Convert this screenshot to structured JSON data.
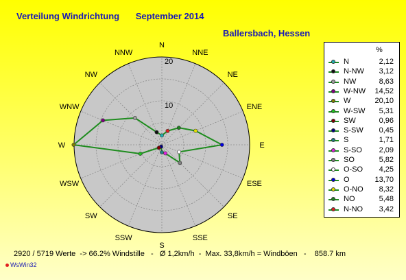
{
  "header": {
    "title": "Verteilung Windrichtung",
    "date": "September 2014",
    "location": "Ballersbach, Hessen"
  },
  "legend": {
    "unit_label": "%"
  },
  "footer": {
    "text": "2920 / 5719 Werte  -> 66.2% Windstille   -   Ø 1,2km/h  -  Max. 33,8km/h = Windböen   -    858.7 km",
    "copyright": "WsWin32"
  },
  "colors": {
    "rose_line": "#1e8c1e",
    "rose_fill": "#c8c8c8",
    "grid": "#8c8c8c",
    "title": "#1a1ab4"
  },
  "chart_data": {
    "type": "radar",
    "title": "Verteilung Windrichtung",
    "directions": [
      "N",
      "NNE",
      "NE",
      "ENE",
      "E",
      "ESE",
      "SE",
      "SSE",
      "S",
      "SSW",
      "SW",
      "WSW",
      "W",
      "WNW",
      "NW",
      "NNW"
    ],
    "rings": [
      10,
      20
    ],
    "rmax": 20,
    "series": [
      {
        "values": [
          2.12,
          3.42,
          5.48,
          8.32,
          13.7,
          4.25,
          5.82,
          2.09,
          1.71,
          0.45,
          0.96,
          5.31,
          20.1,
          14.52,
          8.63,
          3.12
        ]
      }
    ],
    "legend_entries": [
      {
        "label": "N",
        "value": "2,12",
        "color": "#20b0b0"
      },
      {
        "label": "N-NW",
        "value": "3,12",
        "color": "#101010"
      },
      {
        "label": "NW",
        "value": "8,63",
        "color": "#a0a0a0"
      },
      {
        "label": "W-NW",
        "value": "14,52",
        "color": "#800080"
      },
      {
        "label": "W",
        "value": "20,10",
        "color": "#808000"
      },
      {
        "label": "W-SW",
        "value": "5,31",
        "color": "#20c020"
      },
      {
        "label": "SW",
        "value": "0,96",
        "color": "#800000"
      },
      {
        "label": "S-SW",
        "value": "0,45",
        "color": "#000080"
      },
      {
        "label": "S",
        "value": "1,71",
        "color": "#208080"
      },
      {
        "label": "S-SO",
        "value": "2,09",
        "color": "#e020e0"
      },
      {
        "label": "SO",
        "value": "5,82",
        "color": "#808080"
      },
      {
        "label": "O-SO",
        "value": "4,25",
        "color": "#ffffff"
      },
      {
        "label": "O",
        "value": "13,70",
        "color": "#0000e0"
      },
      {
        "label": "O-NO",
        "value": "8,32",
        "color": "#e0e000"
      },
      {
        "label": "NO",
        "value": "5,48",
        "color": "#208020"
      },
      {
        "label": "N-NO",
        "value": "3,42",
        "color": "#e02020"
      }
    ]
  }
}
